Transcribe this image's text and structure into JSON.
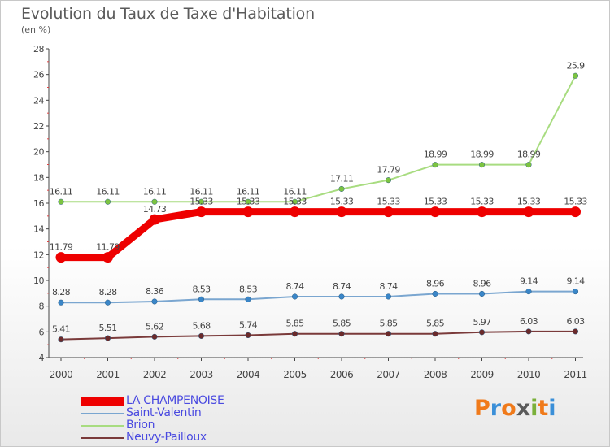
{
  "title": "Evolution du Taux de Taxe d'Habitation",
  "unit_label": "(en %)",
  "logo_text": "Proxiti",
  "logo_colors": [
    "#f07a1a",
    "#3a8fd8",
    "#f07a1a",
    "#5a5a5a",
    "#7ab03a",
    "#f07a1a",
    "#3a8fd8"
  ],
  "chart_data": {
    "type": "line",
    "x": [
      2000,
      2001,
      2002,
      2003,
      2004,
      2005,
      2006,
      2007,
      2008,
      2009,
      2010,
      2011
    ],
    "ylim": [
      4,
      28
    ],
    "yticks": [
      4,
      6,
      8,
      10,
      12,
      14,
      16,
      18,
      20,
      22,
      24,
      26,
      28
    ],
    "grid": false,
    "legend_placement": "bottom-left",
    "series": [
      {
        "name": "LA CHAMPENOISE",
        "color": "#ee0000",
        "marker": "#ee0000",
        "values": [
          11.79,
          11.79,
          14.73,
          15.33,
          15.33,
          15.33,
          15.33,
          15.33,
          15.33,
          15.33,
          15.33,
          15.33
        ],
        "labels": [
          "11.79",
          "11.79",
          "14.73",
          "15.33",
          "15.33",
          "15.33",
          "15.33",
          "15.33",
          "15.33",
          "15.33",
          "15.33",
          "15.33"
        ]
      },
      {
        "name": "Saint-Valentin",
        "color": "#7aa6d0",
        "marker": "#3a86c8",
        "values": [
          8.28,
          8.28,
          8.36,
          8.53,
          8.53,
          8.74,
          8.74,
          8.74,
          8.96,
          8.96,
          9.14,
          9.14
        ],
        "labels": [
          "8.28",
          "8.28",
          "8.36",
          "8.53",
          "8.53",
          "8.74",
          "8.74",
          "8.74",
          "8.96",
          "8.96",
          "9.14",
          "9.14"
        ]
      },
      {
        "name": "Brion",
        "color": "#a8dc80",
        "marker": "#7cc440",
        "values": [
          16.11,
          16.11,
          16.11,
          16.11,
          16.11,
          16.11,
          17.11,
          17.79,
          18.99,
          18.99,
          18.99,
          25.9
        ],
        "labels": [
          "16.11",
          "16.11",
          "16.11",
          "16.11",
          "16.11",
          "16.11",
          "17.11",
          "17.79",
          "18.99",
          "18.99",
          "18.99",
          "25.9"
        ]
      },
      {
        "name": "Neuvy-Pailloux",
        "color": "#7a3a3a",
        "marker": "#6b2a2a",
        "values": [
          5.41,
          5.51,
          5.62,
          5.68,
          5.74,
          5.85,
          5.85,
          5.85,
          5.85,
          5.97,
          6.03,
          6.03
        ],
        "labels": [
          "5.41",
          "5.51",
          "5.62",
          "5.68",
          "5.74",
          "5.85",
          "5.85",
          "5.85",
          "5.85",
          "5.97",
          "6.03",
          "6.03"
        ]
      }
    ]
  }
}
